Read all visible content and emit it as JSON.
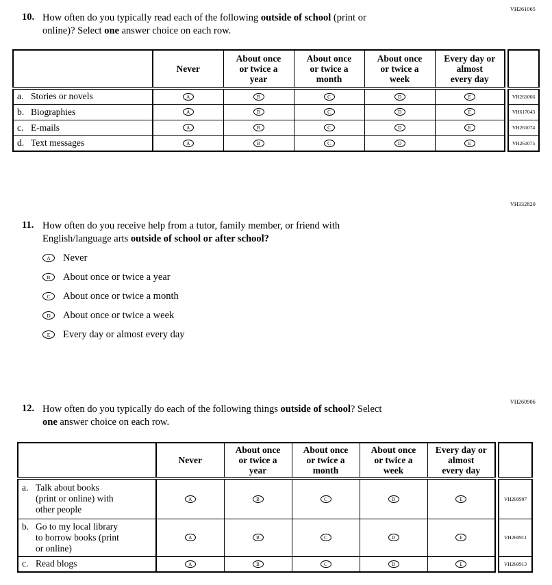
{
  "questions": [
    {
      "code": "VH261065",
      "number": "10.",
      "segments": [
        {
          "text": "How often do you typically read each of the following "
        },
        {
          "text": "outside of school",
          "bold": true
        },
        {
          "text": " (print or\nonline)? Select "
        },
        {
          "text": "one",
          "bold": true
        },
        {
          "text": " answer choice on each row."
        }
      ],
      "table": {
        "columns": [
          "Never",
          "About once\nor twice a\nyear",
          "About once\nor twice a\nmonth",
          "About once\nor twice a\nweek",
          "Every day or\nalmost\nevery day"
        ],
        "choices": [
          "A",
          "B",
          "C",
          "D",
          "E"
        ],
        "rows": [
          {
            "letter": "a.",
            "text": "Stories or novels",
            "code": "VH261066"
          },
          {
            "letter": "b.",
            "text": "Biographies",
            "code": "VH617043"
          },
          {
            "letter": "c.",
            "text": "E-mails",
            "code": "VH261074"
          },
          {
            "letter": "d.",
            "text": "Text messages",
            "code": "VH261075"
          }
        ]
      }
    },
    {
      "code": "VH332820",
      "number": "11.",
      "segments": [
        {
          "text": "How often do you receive help from a tutor, family member, or friend with\nEnglish/language arts "
        },
        {
          "text": "outside of school or after school?",
          "bold": true
        }
      ],
      "options": [
        {
          "letter": "A",
          "label": "Never"
        },
        {
          "letter": "B",
          "label": "About once or twice a year"
        },
        {
          "letter": "C",
          "label": "About once or twice a month"
        },
        {
          "letter": "D",
          "label": "About once or twice a week"
        },
        {
          "letter": "E",
          "label": "Every day or almost every day"
        }
      ]
    },
    {
      "code": "VH260906",
      "number": "12.",
      "segments": [
        {
          "text": "How often do you typically do each of the following things "
        },
        {
          "text": "outside of school",
          "bold": true
        },
        {
          "text": "? Select\n"
        },
        {
          "text": "one",
          "bold": true
        },
        {
          "text": " answer choice on each row."
        }
      ],
      "table": {
        "columns": [
          "Never",
          "About once\nor twice a\nyear",
          "About once\nor twice a\nmonth",
          "About once\nor twice a\nweek",
          "Every day or\nalmost\nevery day"
        ],
        "choices": [
          "A",
          "B",
          "C",
          "D",
          "E"
        ],
        "rows": [
          {
            "letter": "a.",
            "text": "Talk about books\n(print or online) with\nother people",
            "code": "VH260907"
          },
          {
            "letter": "b.",
            "text": "Go to my local library\nto borrow books (print\nor online)",
            "code": "VH260911"
          },
          {
            "letter": "c.",
            "text": "Read blogs",
            "code": "VH260913"
          }
        ]
      }
    }
  ]
}
